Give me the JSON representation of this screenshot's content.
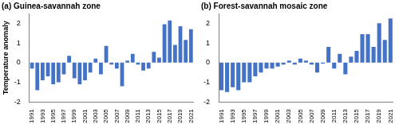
{
  "chart_data": [
    {
      "type": "bar",
      "title": "(a) Guinea-savannah zone",
      "ylabel": "Temperature anomaly",
      "categories": [
        "1991",
        null,
        "1993",
        null,
        "1995",
        null,
        "1997",
        null,
        "1999",
        null,
        "2001",
        null,
        "2003",
        null,
        "2005",
        null,
        "2007",
        null,
        "2009",
        null,
        "2011",
        null,
        "2013",
        null,
        "2015",
        null,
        "2017",
        null,
        "2019",
        null,
        "2021"
      ],
      "values": [
        -0.3,
        -1.4,
        -0.9,
        -0.7,
        -1.1,
        -1.0,
        -0.6,
        0.35,
        -0.8,
        -1.1,
        -0.9,
        -0.5,
        0.2,
        -0.6,
        0.85,
        -0.1,
        -0.3,
        -1.2,
        0.1,
        0.45,
        -0.1,
        -0.4,
        -0.3,
        0.55,
        0.25,
        1.95,
        2.15,
        0.9,
        1.85,
        1.15,
        1.7
      ],
      "color": "#4472c4",
      "ylim": [
        -2,
        2.5
      ],
      "yticks": [
        -2,
        -1,
        0,
        1,
        2
      ],
      "grid": false
    },
    {
      "type": "bar",
      "title": "(b) Forest-savannah mosaic zone",
      "categories": [
        "1991",
        null,
        "1993",
        null,
        "1995",
        null,
        "1997",
        null,
        "1999",
        null,
        "2001",
        null,
        "2003",
        null,
        "2005",
        null,
        "2007",
        null,
        "2009",
        null,
        "2011",
        null,
        "2013",
        null,
        "2015",
        null,
        "2017",
        null,
        "2019",
        null,
        "2021"
      ],
      "values": [
        -1.4,
        -1.5,
        -1.25,
        -1.4,
        -1.0,
        -1.0,
        -0.7,
        -0.5,
        -0.3,
        -0.3,
        -0.2,
        -0.1,
        0.1,
        -0.1,
        0.2,
        0.1,
        -0.1,
        -0.5,
        -0.05,
        0.8,
        -0.3,
        0.45,
        -0.6,
        0.3,
        0.6,
        1.45,
        1.45,
        0.8,
        2.0,
        1.15,
        2.25
      ],
      "color": "#4472c4",
      "ylim": [
        -2,
        2.5
      ],
      "yticks": [
        -2,
        -1,
        0,
        1,
        2
      ],
      "grid": false
    }
  ]
}
